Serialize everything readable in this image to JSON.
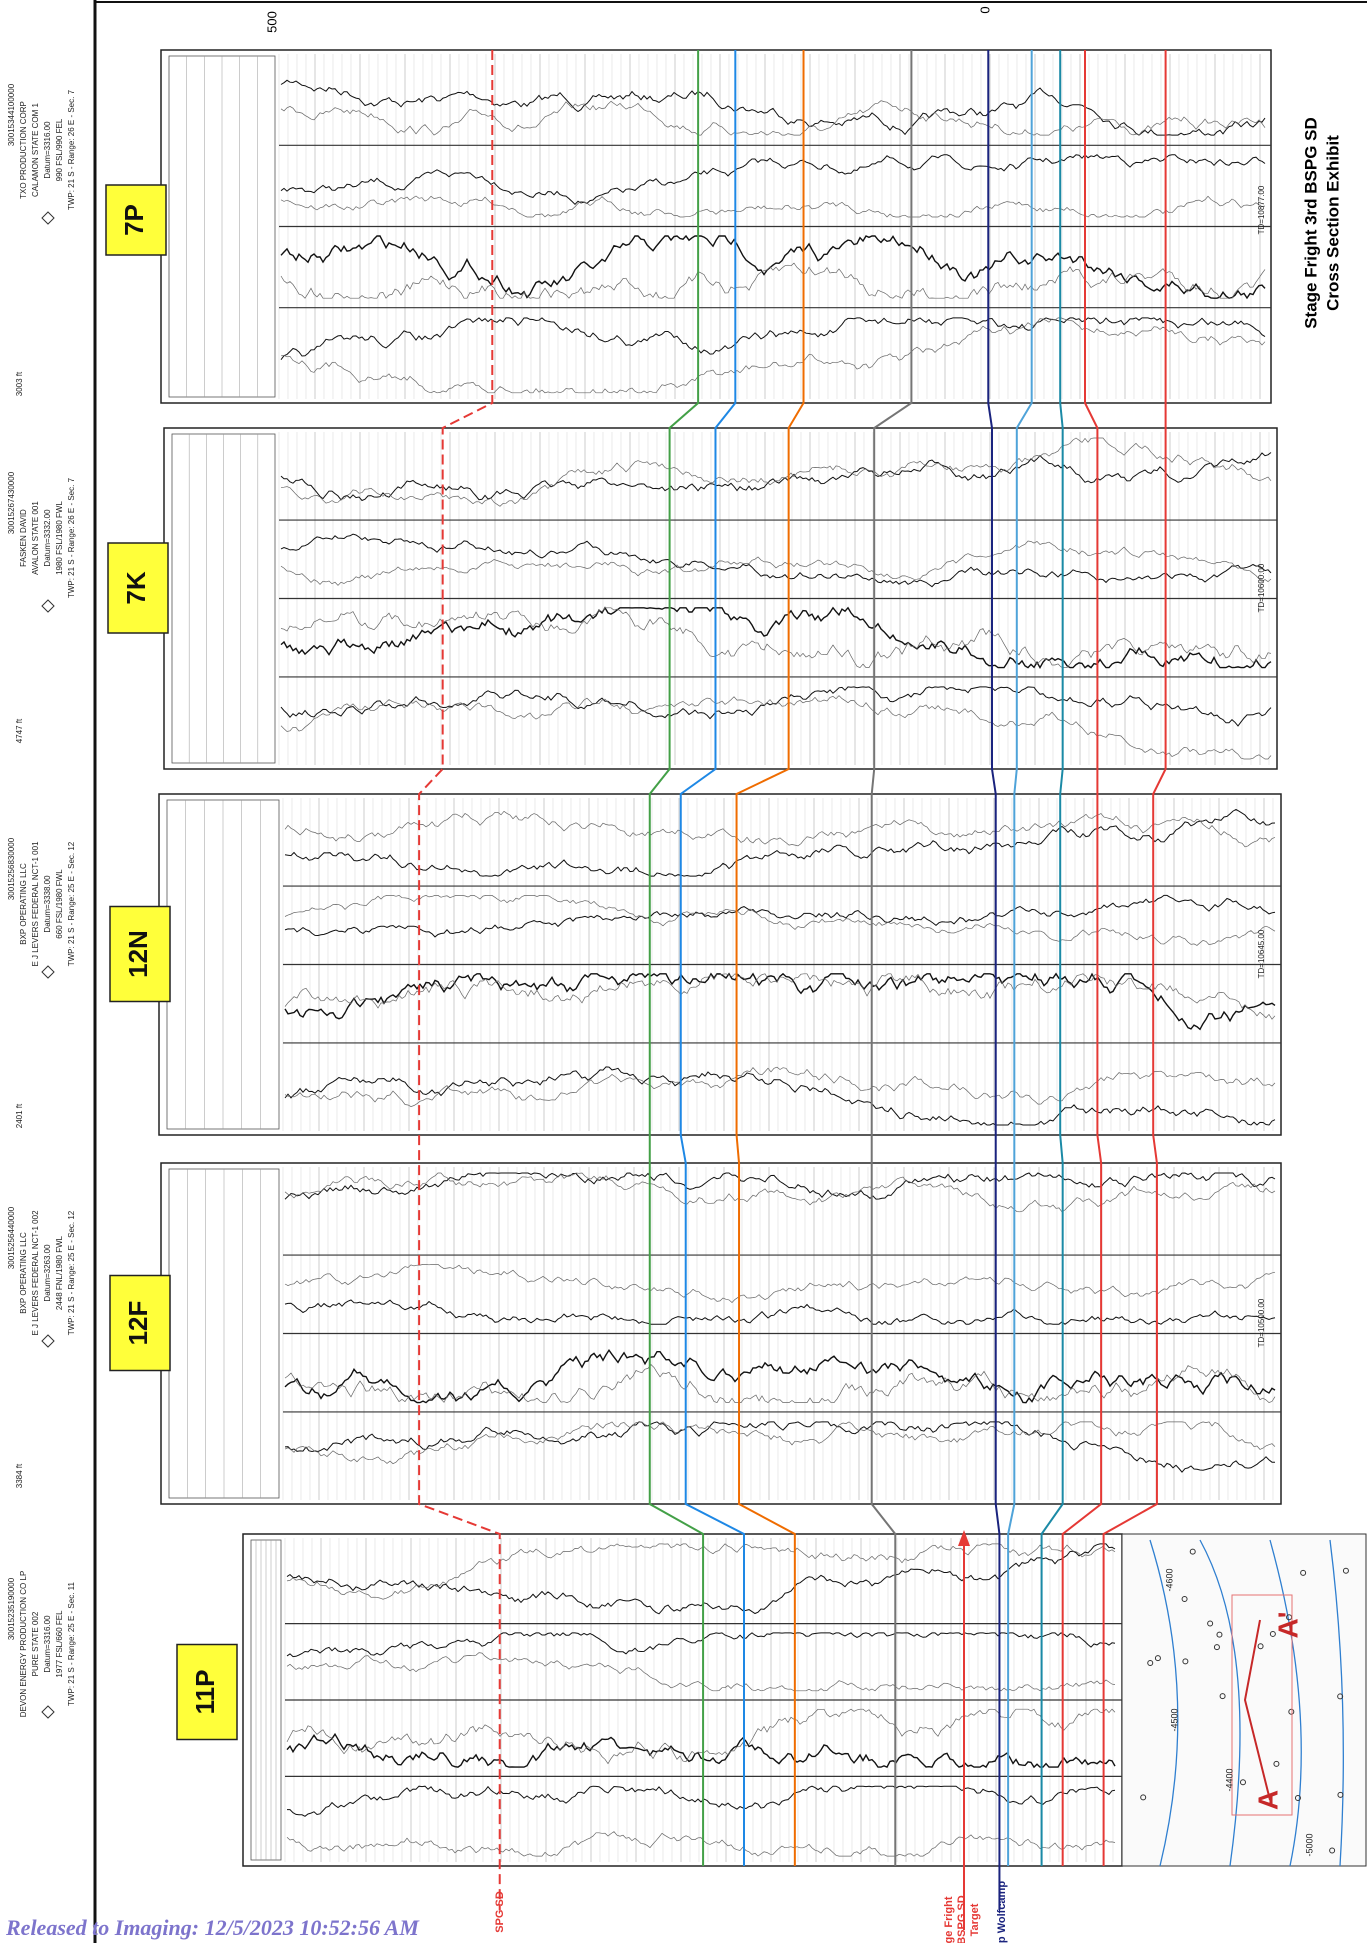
{
  "ruler": {
    "labels": [
      "500",
      "0"
    ]
  },
  "wells": [
    {
      "label": "7P",
      "api": "30015344100000",
      "operator": "TXO PRODUCTION CORP",
      "lease": "CALAMON STATE COM 1",
      "datum": "Datum=3316.00",
      "location": "990 FSL/990 FEL",
      "township": "TWP: 21 S - Range: 26 E - Sec. 7",
      "td": "TD=10877.00"
    },
    {
      "label": "7K",
      "api": "30015267430000",
      "operator": "FASKEN DAVID",
      "lease": "AVALON STATE 001",
      "datum": "Datum=3332.00",
      "location": "1980 FSL/1980 FWL",
      "township": "TWP: 21 S - Range: 26 E - Sec. 7",
      "td": "TD=10600.00"
    },
    {
      "label": "12N",
      "api": "30015256830000",
      "operator": "BXP OPERATING LLC",
      "lease": "E J LEVERS FEDERAL NCT-1 001",
      "datum": "Datum=3338.00",
      "location": "660 FSL/1980 FWL",
      "township": "TWP: 21 S - Range: 25 E - Sec. 12",
      "td": "TD=10645.00"
    },
    {
      "label": "12F",
      "api": "30015256440000",
      "operator": "BXP OPERATING LLC",
      "lease": "E J LEVERS FEDERAL NCT-1 002",
      "datum": "Datum=3263.00",
      "location": "2448 FNL/1980 FWL",
      "township": "TWP: 21 S - Range: 25 E - Sec. 12",
      "td": "TD=10500.00"
    },
    {
      "label": "11P",
      "api": "30015235190000",
      "operator": "DEVON ENERGY PRODUCTION CO LP",
      "lease": "PURE STATE 002",
      "datum": "Datum=3316.00",
      "location": "1977 FSL/660 FEL",
      "township": "TWP: 21 S - Range: 25 E - Sec. 11",
      "td": ""
    }
  ],
  "spacings": [
    "3003 ft",
    "4747 ft",
    "2401 ft",
    "3384 ft"
  ],
  "title": [
    "Stage Fright 3rd BSPG SD",
    "Cross Section Exhibit"
  ],
  "horizon_labels": [
    "SPG SD",
    "ge Fright",
    "BSPG SD",
    "Target",
    "p Wolfcamp"
  ],
  "map": {
    "labels": [
      "A",
      "A'"
    ],
    "contours": [
      "-4600",
      "-4500",
      "-4400",
      "-5000"
    ]
  },
  "footer": "Released to Imaging: 12/5/2023 10:52:56 AM"
}
